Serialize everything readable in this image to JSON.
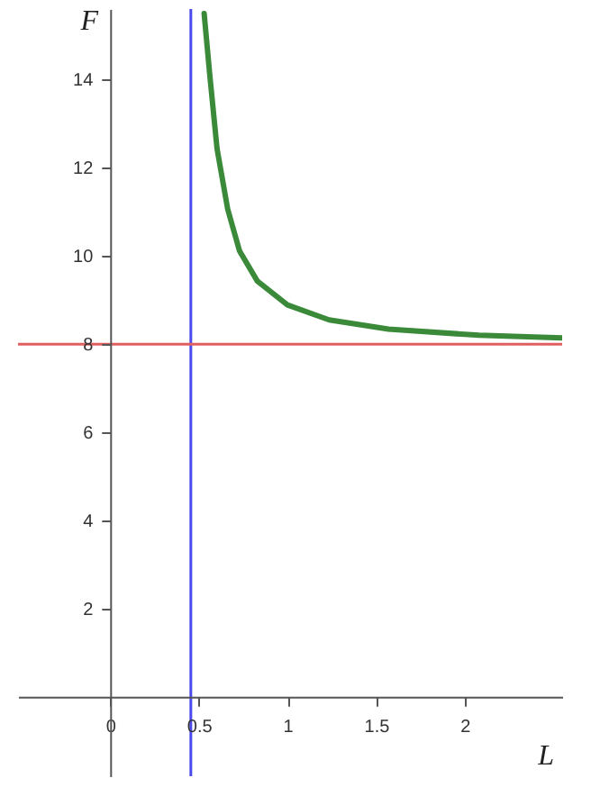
{
  "chart_data": {
    "type": "line",
    "xlabel": "L",
    "ylabel": "F",
    "x": [
      0.53,
      0.563,
      0.603,
      0.663,
      0.73,
      0.83,
      1.0,
      1.235,
      1.57,
      2.08,
      2.55
    ],
    "series": [
      {
        "color": "#3a8a3a",
        "values": [
          15.5,
          14.06,
          12.43,
          11.06,
          10.11,
          9.43,
          8.89,
          8.55,
          8.34,
          8.2,
          8.14
        ]
      }
    ],
    "xlim": [
      -0.52,
      2.55
    ],
    "ylim": [
      -1.8,
      15.6
    ],
    "xticks": [
      0,
      0.5,
      1,
      1.5,
      2
    ],
    "yticks": [
      2,
      4,
      6,
      8,
      10,
      12,
      14
    ],
    "ref_lines": [
      {
        "axis": "x",
        "value": 0.455,
        "color": "#4a4aee"
      },
      {
        "axis": "y",
        "value": 8,
        "color": "#e06060"
      }
    ],
    "grid": false,
    "marker": "none",
    "line_style": "solid"
  }
}
